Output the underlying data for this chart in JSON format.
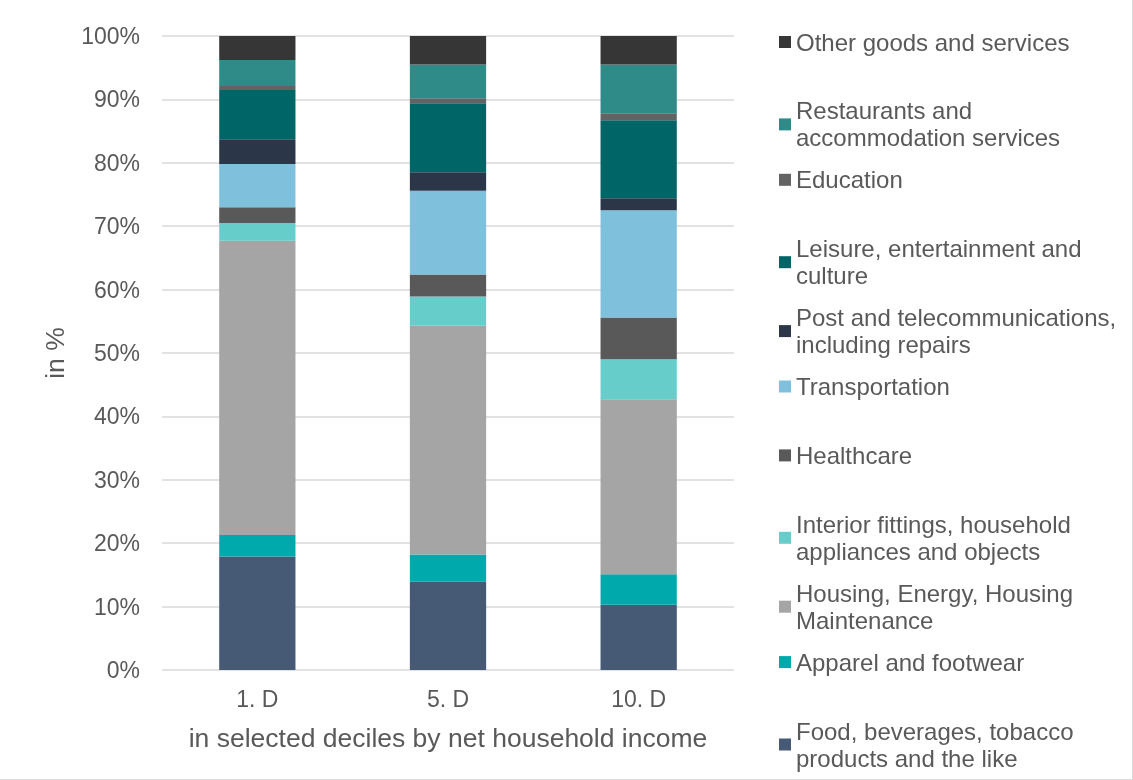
{
  "chart_data": {
    "type": "bar",
    "stacked": true,
    "xlabel": "in selected deciles by net household income",
    "ylabel": "in %",
    "categories": [
      "1. D",
      "5. D",
      "10. D"
    ],
    "series": [
      {
        "name": "Food, beverages, tobacco products and the like",
        "color": "#475a75",
        "values": [
          17.9,
          13.9,
          10.3
        ]
      },
      {
        "name": "Apparel and footwear",
        "color": "#00a9ac",
        "values": [
          3.4,
          4.3,
          4.8
        ]
      },
      {
        "name": "Housing, Energy, Housing Maintenance",
        "color": "#a5a5a5",
        "values": [
          46.4,
          36.1,
          27.6
        ]
      },
      {
        "name": "Interior fittings, household appliances and objects",
        "color": "#66cdcb",
        "values": [
          2.8,
          4.6,
          6.3
        ]
      },
      {
        "name": "Healthcare",
        "color": "#595959",
        "values": [
          2.5,
          3.5,
          6.6
        ]
      },
      {
        "name": "Transportation",
        "color": "#7fc1dc",
        "values": [
          6.8,
          13.2,
          16.9
        ]
      },
      {
        "name": "Post and telecommunications, including repairs",
        "color": "#2b3748",
        "values": [
          3.9,
          2.9,
          1.9
        ]
      },
      {
        "name": "Leisure, entertainment and culture",
        "color": "#006566",
        "values": [
          7.8,
          10.9,
          12.3
        ]
      },
      {
        "name": "Education",
        "color": "#636363",
        "values": [
          0.6,
          0.8,
          1.1
        ]
      },
      {
        "name": "Restaurants and accommodation services",
        "color": "#2e8b88",
        "values": [
          4.1,
          5.3,
          7.7
        ]
      },
      {
        "name": "Other goods and services",
        "color": "#363636",
        "values": [
          3.8,
          4.5,
          4.5
        ]
      }
    ],
    "ylim": [
      0,
      100
    ],
    "yticks": [
      {
        "value": 0,
        "label": "0%"
      },
      {
        "value": 10,
        "label": "10%"
      },
      {
        "value": 20,
        "label": "20%"
      },
      {
        "value": 30,
        "label": "30%"
      },
      {
        "value": 40,
        "label": "40%"
      },
      {
        "value": 50,
        "label": "50%"
      },
      {
        "value": 60,
        "label": "60%"
      },
      {
        "value": 70,
        "label": "70%"
      },
      {
        "value": 80,
        "label": "80%"
      },
      {
        "value": 90,
        "label": "90%"
      },
      {
        "value": 100,
        "label": "100%"
      }
    ],
    "grid": "y",
    "legend": "right"
  }
}
